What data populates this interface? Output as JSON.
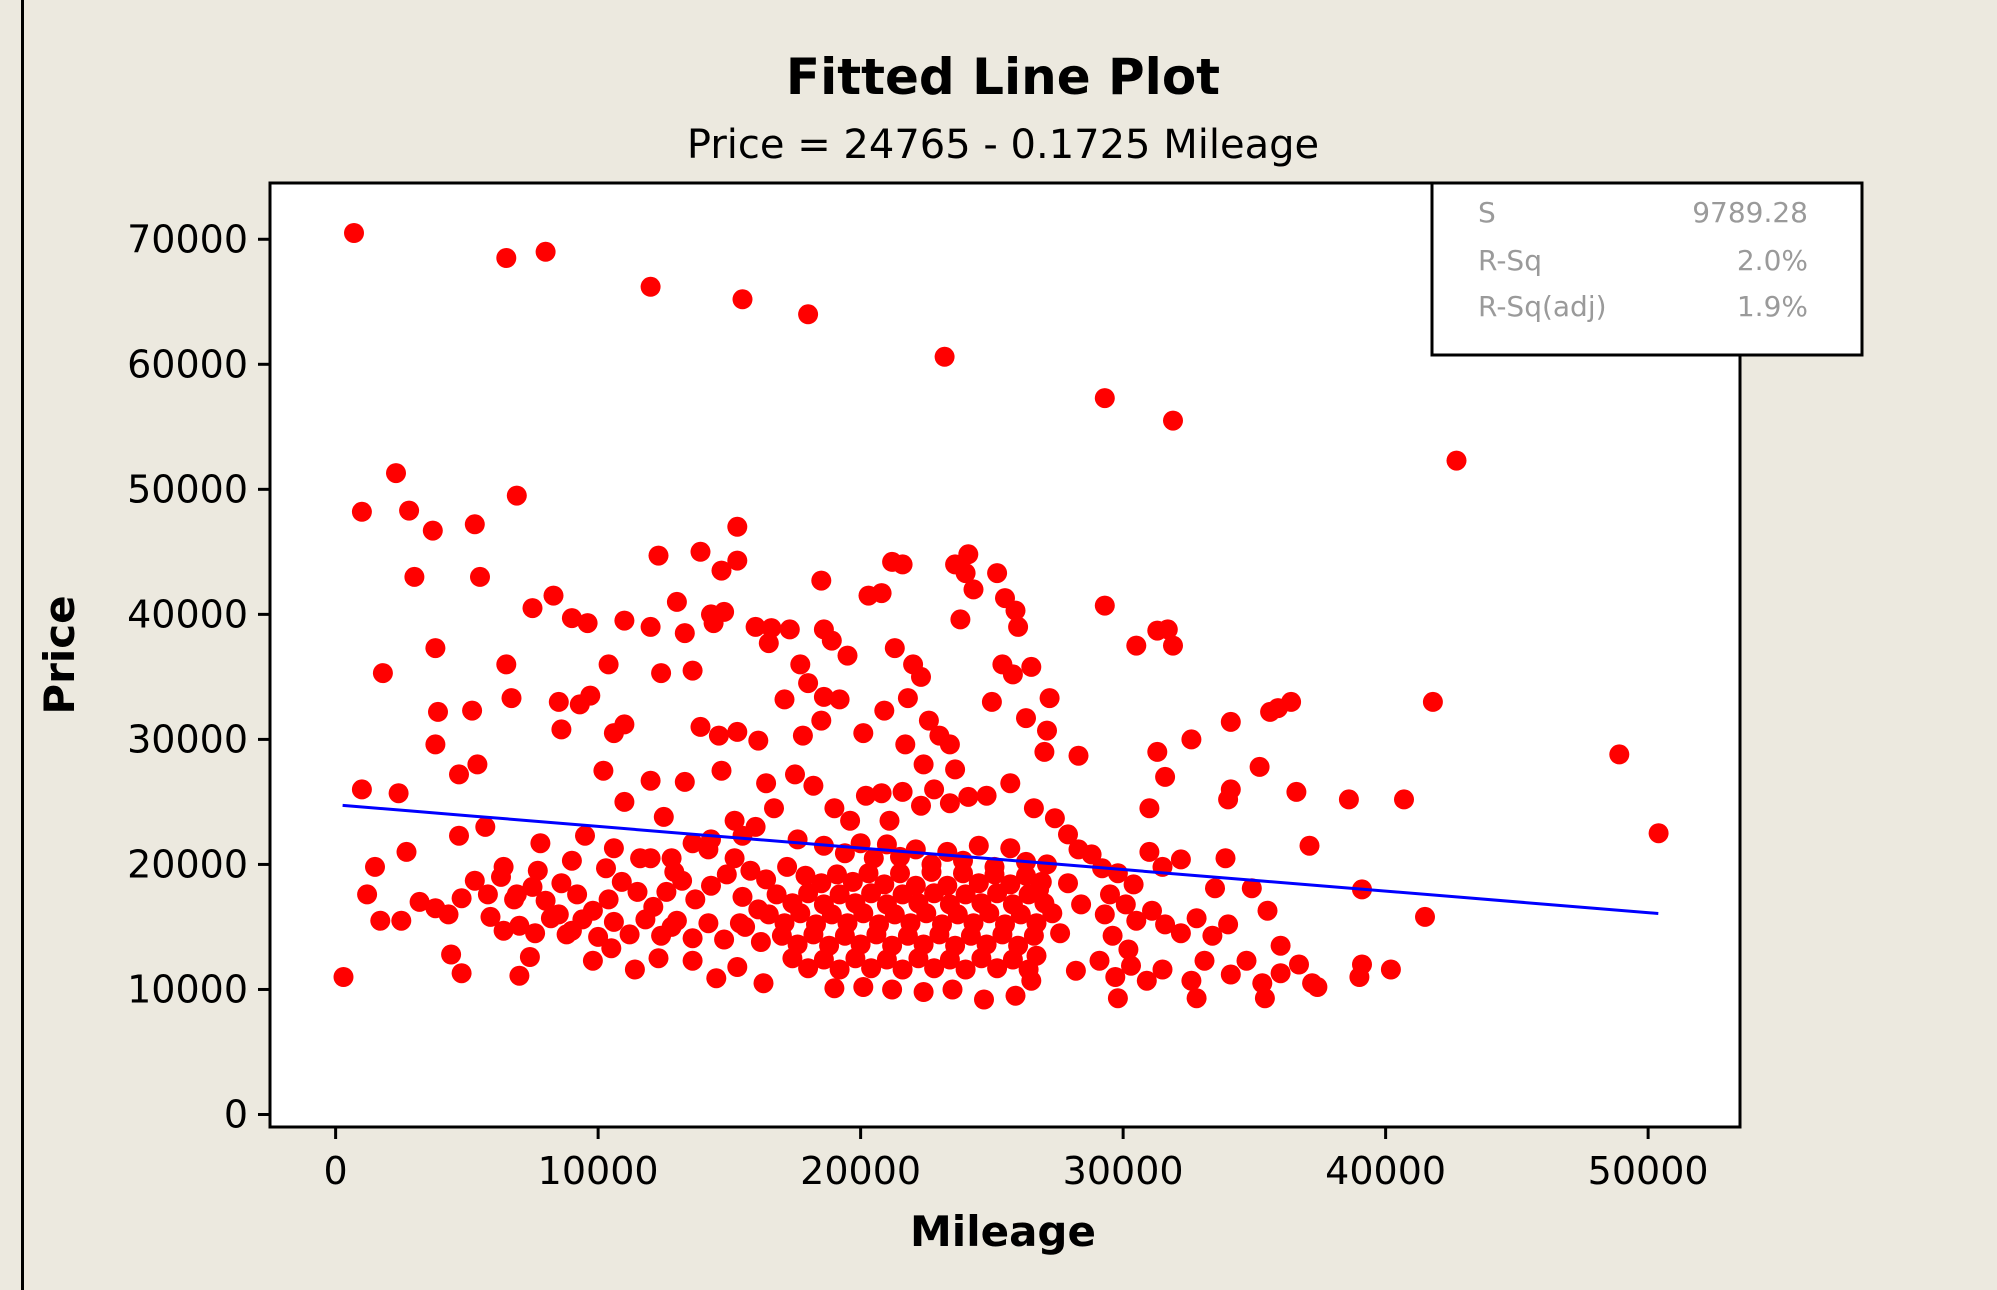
{
  "chart_data": {
    "type": "scatter",
    "title": "Fitted Line Plot",
    "subtitle": "Price =  24765 - 0.1725 Mileage",
    "xlabel": "Mileage",
    "ylabel": "Price",
    "xlim": [
      -2500,
      53500
    ],
    "ylim": [
      -1000,
      74500
    ],
    "xticks": [
      0,
      10000,
      20000,
      30000,
      40000,
      50000
    ],
    "yticks": [
      0,
      10000,
      20000,
      30000,
      40000,
      50000,
      60000,
      70000
    ],
    "point_color": "#ff0000",
    "line_color": "#0000ff",
    "fit": {
      "intercept": 24765,
      "slope": -0.1725,
      "x_range": [
        266,
        50387
      ]
    },
    "stats": [
      {
        "label": "S",
        "value": "9789.28"
      },
      {
        "label": "R-Sq",
        "value": "2.0%"
      },
      {
        "label": "R-Sq(adj)",
        "value": "1.9%"
      }
    ],
    "points": [
      [
        700,
        70500
      ],
      [
        6500,
        68500
      ],
      [
        8000,
        69000
      ],
      [
        12000,
        66200
      ],
      [
        15500,
        65200
      ],
      [
        18000,
        64000
      ],
      [
        23200,
        60600
      ],
      [
        29300,
        57300
      ],
      [
        31900,
        55500
      ],
      [
        42700,
        52300
      ],
      [
        1000,
        48200
      ],
      [
        2300,
        51300
      ],
      [
        2800,
        48300
      ],
      [
        6900,
        49500
      ],
      [
        3700,
        46700
      ],
      [
        5300,
        47200
      ],
      [
        15300,
        47000
      ],
      [
        300,
        11000
      ],
      [
        1800,
        35300
      ],
      [
        3000,
        43000
      ],
      [
        3800,
        37300
      ],
      [
        3900,
        32200
      ],
      [
        3800,
        29600
      ],
      [
        5500,
        43000
      ],
      [
        5200,
        32300
      ],
      [
        6500,
        36000
      ],
      [
        6700,
        33300
      ],
      [
        4700,
        22300
      ],
      [
        5700,
        23000
      ],
      [
        4700,
        27200
      ],
      [
        5400,
        28000
      ],
      [
        1000,
        26000
      ],
      [
        2400,
        25700
      ],
      [
        2700,
        21000
      ],
      [
        3200,
        17000
      ],
      [
        1500,
        19800
      ],
      [
        1200,
        17600
      ],
      [
        1700,
        15500
      ],
      [
        2500,
        15500
      ],
      [
        3800,
        16500
      ],
      [
        4400,
        12800
      ],
      [
        4800,
        11300
      ],
      [
        7500,
        40500
      ],
      [
        8300,
        41500
      ],
      [
        9000,
        39700
      ],
      [
        9600,
        39300
      ],
      [
        8500,
        33000
      ],
      [
        9300,
        32800
      ],
      [
        9700,
        33500
      ],
      [
        10400,
        36000
      ],
      [
        11000,
        39500
      ],
      [
        12000,
        39000
      ],
      [
        12400,
        35300
      ],
      [
        12300,
        44700
      ],
      [
        13000,
        41000
      ],
      [
        13300,
        38500
      ],
      [
        13600,
        35500
      ],
      [
        13900,
        45000
      ],
      [
        14300,
        40000
      ],
      [
        14700,
        43500
      ],
      [
        15300,
        44300
      ],
      [
        14800,
        40200
      ],
      [
        14400,
        39300
      ],
      [
        8600,
        30800
      ],
      [
        10200,
        27500
      ],
      [
        10600,
        30500
      ],
      [
        11000,
        31200
      ],
      [
        11000,
        25000
      ],
      [
        9500,
        22300
      ],
      [
        10600,
        21300
      ],
      [
        7800,
        21700
      ],
      [
        6800,
        17200
      ],
      [
        7000,
        11100
      ],
      [
        7400,
        12600
      ],
      [
        8500,
        16000
      ],
      [
        9000,
        14700
      ],
      [
        9800,
        12300
      ],
      [
        10500,
        13300
      ],
      [
        11400,
        11600
      ],
      [
        12300,
        12500
      ],
      [
        12800,
        15000
      ],
      [
        13600,
        12300
      ],
      [
        14500,
        10900
      ],
      [
        15300,
        11800
      ],
      [
        16300,
        10500
      ],
      [
        12000,
        26700
      ],
      [
        12500,
        23800
      ],
      [
        13300,
        26600
      ],
      [
        13900,
        31000
      ],
      [
        14600,
        30300
      ],
      [
        15300,
        30600
      ],
      [
        14700,
        27500
      ],
      [
        16100,
        29900
      ],
      [
        16400,
        26500
      ],
      [
        16000,
        23000
      ],
      [
        15500,
        22300
      ],
      [
        14300,
        22000
      ],
      [
        13600,
        21700
      ],
      [
        12800,
        20500
      ],
      [
        12000,
        20500
      ],
      [
        16000,
        39000
      ],
      [
        16600,
        38900
      ],
      [
        17300,
        38800
      ],
      [
        16500,
        37700
      ],
      [
        17700,
        36000
      ],
      [
        18000,
        34500
      ],
      [
        18600,
        33400
      ],
      [
        17100,
        33200
      ],
      [
        18500,
        31500
      ],
      [
        17800,
        30300
      ],
      [
        18600,
        38800
      ],
      [
        18500,
        42700
      ],
      [
        18900,
        37900
      ],
      [
        19500,
        36700
      ],
      [
        20300,
        41500
      ],
      [
        20800,
        41700
      ],
      [
        21200,
        44200
      ],
      [
        21600,
        44000
      ],
      [
        21300,
        37300
      ],
      [
        22000,
        36000
      ],
      [
        22300,
        35000
      ],
      [
        21800,
        33300
      ],
      [
        22600,
        31500
      ],
      [
        23000,
        30300
      ],
      [
        23400,
        29600
      ],
      [
        23600,
        44000
      ],
      [
        24100,
        44800
      ],
      [
        24000,
        43300
      ],
      [
        24300,
        42000
      ],
      [
        23800,
        39600
      ],
      [
        25200,
        43300
      ],
      [
        25500,
        41300
      ],
      [
        25900,
        40300
      ],
      [
        26000,
        39000
      ],
      [
        25400,
        36000
      ],
      [
        25800,
        35200
      ],
      [
        26500,
        35800
      ],
      [
        25000,
        33000
      ],
      [
        26300,
        31700
      ],
      [
        27200,
        33300
      ],
      [
        27100,
        30700
      ],
      [
        27000,
        29000
      ],
      [
        28300,
        28700
      ],
      [
        19200,
        33200
      ],
      [
        20100,
        30500
      ],
      [
        20900,
        32300
      ],
      [
        21700,
        29600
      ],
      [
        22400,
        28000
      ],
      [
        23600,
        27600
      ],
      [
        17500,
        27200
      ],
      [
        18200,
        26300
      ],
      [
        19000,
        24500
      ],
      [
        19600,
        23500
      ],
      [
        20200,
        25500
      ],
      [
        20800,
        25700
      ],
      [
        21100,
        23500
      ],
      [
        21600,
        25800
      ],
      [
        22300,
        24700
      ],
      [
        22800,
        26000
      ],
      [
        23400,
        24900
      ],
      [
        24100,
        25400
      ],
      [
        24800,
        25500
      ],
      [
        25700,
        26500
      ],
      [
        26600,
        24500
      ],
      [
        27400,
        23700
      ],
      [
        27900,
        22400
      ],
      [
        28300,
        21200
      ],
      [
        27100,
        20000
      ],
      [
        26800,
        18000
      ],
      [
        27900,
        18500
      ],
      [
        28400,
        16800
      ],
      [
        27600,
        14500
      ],
      [
        26700,
        12700
      ],
      [
        28200,
        11500
      ],
      [
        17600,
        22000
      ],
      [
        18600,
        21500
      ],
      [
        19400,
        20900
      ],
      [
        20000,
        21700
      ],
      [
        20500,
        20500
      ],
      [
        21000,
        21600
      ],
      [
        21500,
        20600
      ],
      [
        22100,
        21200
      ],
      [
        22700,
        20000
      ],
      [
        23300,
        21000
      ],
      [
        23900,
        20300
      ],
      [
        24500,
        21500
      ],
      [
        25100,
        19800
      ],
      [
        25700,
        21300
      ],
      [
        26300,
        20200
      ],
      [
        17200,
        19800
      ],
      [
        17900,
        19100
      ],
      [
        18500,
        18500
      ],
      [
        19100,
        19200
      ],
      [
        19700,
        18600
      ],
      [
        20300,
        19300
      ],
      [
        20900,
        18400
      ],
      [
        21500,
        19300
      ],
      [
        22100,
        18300
      ],
      [
        22700,
        19400
      ],
      [
        23300,
        18300
      ],
      [
        23900,
        19300
      ],
      [
        24500,
        18500
      ],
      [
        25100,
        19200
      ],
      [
        25700,
        18400
      ],
      [
        26300,
        19100
      ],
      [
        26900,
        18600
      ],
      [
        16800,
        17600
      ],
      [
        17400,
        16900
      ],
      [
        18000,
        17700
      ],
      [
        18600,
        16800
      ],
      [
        19200,
        17600
      ],
      [
        19800,
        16900
      ],
      [
        20400,
        17700
      ],
      [
        21000,
        16800
      ],
      [
        21600,
        17600
      ],
      [
        22200,
        16900
      ],
      [
        22800,
        17700
      ],
      [
        23400,
        16800
      ],
      [
        24000,
        17600
      ],
      [
        24600,
        16900
      ],
      [
        25200,
        17700
      ],
      [
        25800,
        16800
      ],
      [
        26400,
        17600
      ],
      [
        27000,
        16900
      ],
      [
        16500,
        16000
      ],
      [
        17100,
        15300
      ],
      [
        17700,
        16100
      ],
      [
        18300,
        15200
      ],
      [
        18900,
        16000
      ],
      [
        19500,
        15300
      ],
      [
        20100,
        16100
      ],
      [
        20700,
        15200
      ],
      [
        21300,
        16000
      ],
      [
        21900,
        15300
      ],
      [
        22500,
        16100
      ],
      [
        23100,
        15200
      ],
      [
        23700,
        16000
      ],
      [
        24300,
        15300
      ],
      [
        24900,
        16100
      ],
      [
        25500,
        15200
      ],
      [
        26100,
        16000
      ],
      [
        26700,
        15300
      ],
      [
        27300,
        16100
      ],
      [
        17000,
        14300
      ],
      [
        17600,
        13600
      ],
      [
        18200,
        14400
      ],
      [
        18800,
        13500
      ],
      [
        19400,
        14300
      ],
      [
        20000,
        13600
      ],
      [
        20600,
        14400
      ],
      [
        21200,
        13500
      ],
      [
        21800,
        14300
      ],
      [
        22400,
        13600
      ],
      [
        23000,
        14400
      ],
      [
        23600,
        13500
      ],
      [
        24200,
        14300
      ],
      [
        24800,
        13600
      ],
      [
        25400,
        14400
      ],
      [
        26000,
        13500
      ],
      [
        26600,
        14300
      ],
      [
        17400,
        12500
      ],
      [
        18000,
        11700
      ],
      [
        18600,
        12400
      ],
      [
        19200,
        11600
      ],
      [
        19800,
        12500
      ],
      [
        20400,
        11700
      ],
      [
        21000,
        12400
      ],
      [
        21600,
        11600
      ],
      [
        22200,
        12500
      ],
      [
        22800,
        11700
      ],
      [
        23400,
        12400
      ],
      [
        24000,
        11600
      ],
      [
        24600,
        12500
      ],
      [
        25200,
        11700
      ],
      [
        25800,
        12400
      ],
      [
        26400,
        11600
      ],
      [
        19000,
        10100
      ],
      [
        20100,
        10200
      ],
      [
        21200,
        10000
      ],
      [
        22400,
        9800
      ],
      [
        23500,
        10000
      ],
      [
        24700,
        9200
      ],
      [
        25900,
        9500
      ],
      [
        26500,
        10700
      ],
      [
        15200,
        20500
      ],
      [
        15800,
        19500
      ],
      [
        16400,
        18800
      ],
      [
        15500,
        17400
      ],
      [
        16100,
        16400
      ],
      [
        15600,
        15000
      ],
      [
        16200,
        13800
      ],
      [
        14900,
        19200
      ],
      [
        14300,
        18300
      ],
      [
        13700,
        17200
      ],
      [
        13200,
        18700
      ],
      [
        12600,
        17800
      ],
      [
        12100,
        16600
      ],
      [
        11500,
        17800
      ],
      [
        10900,
        18600
      ],
      [
        10400,
        17200
      ],
      [
        9800,
        16300
      ],
      [
        9200,
        17600
      ],
      [
        8600,
        18500
      ],
      [
        8000,
        17100
      ],
      [
        7500,
        18200
      ],
      [
        6900,
        17600
      ],
      [
        6300,
        19000
      ],
      [
        5800,
        17600
      ],
      [
        5300,
        18700
      ],
      [
        4800,
        17300
      ],
      [
        4300,
        16000
      ],
      [
        5900,
        15800
      ],
      [
        6400,
        14700
      ],
      [
        7000,
        15100
      ],
      [
        7600,
        14500
      ],
      [
        8200,
        15700
      ],
      [
        8800,
        14400
      ],
      [
        9400,
        15600
      ],
      [
        10000,
        14200
      ],
      [
        10600,
        15400
      ],
      [
        11200,
        14400
      ],
      [
        11800,
        15600
      ],
      [
        12400,
        14300
      ],
      [
        13000,
        15500
      ],
      [
        13600,
        14100
      ],
      [
        14200,
        15300
      ],
      [
        14800,
        14000
      ],
      [
        15400,
        15300
      ],
      [
        6400,
        19800
      ],
      [
        7700,
        19500
      ],
      [
        9000,
        20300
      ],
      [
        10300,
        19700
      ],
      [
        11600,
        20500
      ],
      [
        12900,
        19400
      ],
      [
        14200,
        21200
      ],
      [
        15200,
        23500
      ],
      [
        16700,
        24500
      ],
      [
        28800,
        20800
      ],
      [
        29200,
        19700
      ],
      [
        29800,
        19300
      ],
      [
        30400,
        18400
      ],
      [
        29500,
        17600
      ],
      [
        30100,
        16800
      ],
      [
        29300,
        16000
      ],
      [
        30500,
        15500
      ],
      [
        31100,
        16300
      ],
      [
        31600,
        15200
      ],
      [
        32200,
        14500
      ],
      [
        32800,
        15700
      ],
      [
        33400,
        14300
      ],
      [
        34000,
        15200
      ],
      [
        29600,
        14300
      ],
      [
        30200,
        13200
      ],
      [
        29100,
        12300
      ],
      [
        29700,
        11000
      ],
      [
        30300,
        11900
      ],
      [
        30900,
        10700
      ],
      [
        31500,
        11600
      ],
      [
        29800,
        9300
      ],
      [
        32600,
        10700
      ],
      [
        33100,
        12300
      ],
      [
        32800,
        9300
      ],
      [
        34100,
        11200
      ],
      [
        34700,
        12300
      ],
      [
        35300,
        10500
      ],
      [
        35400,
        9300
      ],
      [
        36000,
        11300
      ],
      [
        36700,
        12000
      ],
      [
        37200,
        10500
      ],
      [
        37400,
        10200
      ],
      [
        39000,
        11000
      ],
      [
        39100,
        12000
      ],
      [
        40200,
        11600
      ],
      [
        29300,
        40700
      ],
      [
        30500,
        37500
      ],
      [
        31300,
        38700
      ],
      [
        31700,
        38800
      ],
      [
        31900,
        37500
      ],
      [
        31000,
        24500
      ],
      [
        31600,
        27000
      ],
      [
        31300,
        29000
      ],
      [
        32600,
        30000
      ],
      [
        31000,
        21000
      ],
      [
        31500,
        19800
      ],
      [
        32200,
        20400
      ],
      [
        33900,
        20500
      ],
      [
        34000,
        25200
      ],
      [
        34100,
        26000
      ],
      [
        34100,
        31400
      ],
      [
        35200,
        27800
      ],
      [
        35600,
        32200
      ],
      [
        35900,
        32500
      ],
      [
        36400,
        33000
      ],
      [
        36600,
        25800
      ],
      [
        37100,
        21500
      ],
      [
        33500,
        18100
      ],
      [
        34900,
        18100
      ],
      [
        35500,
        16300
      ],
      [
        36000,
        13500
      ],
      [
        38600,
        25200
      ],
      [
        39100,
        18000
      ],
      [
        40700,
        25200
      ],
      [
        41800,
        33000
      ],
      [
        41500,
        15800
      ],
      [
        48900,
        28800
      ],
      [
        50400,
        22500
      ]
    ]
  }
}
